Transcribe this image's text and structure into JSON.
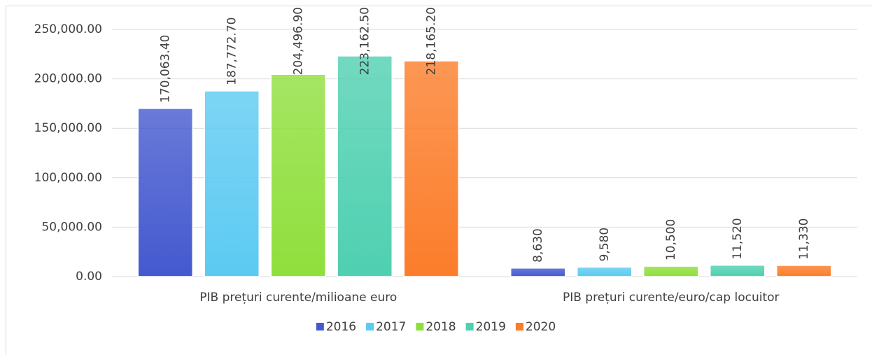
{
  "chart_data": {
    "type": "bar",
    "categories": [
      "PIB prețuri curente/milioane euro",
      "PIB prețuri curente/euro/cap locuitor"
    ],
    "series": [
      {
        "name": "2016",
        "color": "#4459cf",
        "values": [
          170063.4,
          8630
        ],
        "value_labels": [
          "170,063.40",
          "8,630"
        ]
      },
      {
        "name": "2017",
        "color": "#5ccaf2",
        "values": [
          187772.7,
          9580
        ],
        "value_labels": [
          "187,772.70",
          "9,580"
        ]
      },
      {
        "name": "2018",
        "color": "#8fdf3c",
        "values": [
          204496.9,
          10500
        ],
        "value_labels": [
          "204,496.90",
          "10,500"
        ]
      },
      {
        "name": "2019",
        "color": "#4fd0b0",
        "values": [
          223162.5,
          11520
        ],
        "value_labels": [
          "223,162.50",
          "11,520"
        ]
      },
      {
        "name": "2020",
        "color": "#fb7d2a",
        "values": [
          218165.2,
          11330
        ],
        "value_labels": [
          "218,165.20",
          "11,330"
        ]
      }
    ],
    "ylim": [
      0,
      250000
    ],
    "yticks": [
      {
        "value": 0,
        "label": "0.00"
      },
      {
        "value": 50000,
        "label": "50,000.00"
      },
      {
        "value": 100000,
        "label": "100,000.00"
      },
      {
        "value": 150000,
        "label": "150,000.00"
      },
      {
        "value": 200000,
        "label": "200,000.00"
      },
      {
        "value": 250000,
        "label": "250,000.00"
      }
    ],
    "grid": true,
    "legend": "bottom"
  }
}
